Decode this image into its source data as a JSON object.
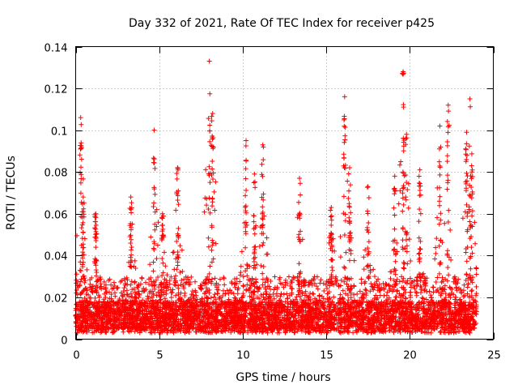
{
  "chart_data": {
    "type": "scatter",
    "title": "Day 332 of 2021, Rate Of TEC Index for receiver p425",
    "xlabel": "GPS time / hours",
    "ylabel": "ROTI / TECUs",
    "xlim": [
      0,
      25
    ],
    "ylim": [
      0,
      0.14
    ],
    "xticks": [
      0,
      5,
      10,
      15,
      20,
      25
    ],
    "xtick_labels": [
      "0",
      "5",
      "10",
      "15",
      "20",
      "25"
    ],
    "yticks": [
      0,
      0.02,
      0.04,
      0.06,
      0.08,
      0.1,
      0.12,
      0.14
    ],
    "ytick_labels": [
      "0",
      "0.02",
      "0.04",
      "0.06",
      "0.08",
      "0.1",
      "0.12",
      "0.14"
    ],
    "grid": true,
    "marker": "+",
    "color": "#ff0000",
    "data_range_x": [
      0,
      24
    ],
    "peaks": [
      {
        "x": 0.3,
        "y": 0.106
      },
      {
        "x": 0.45,
        "y": 0.068
      },
      {
        "x": 1.2,
        "y": 0.06
      },
      {
        "x": 3.3,
        "y": 0.068
      },
      {
        "x": 4.7,
        "y": 0.1
      },
      {
        "x": 5.2,
        "y": 0.06
      },
      {
        "x": 6.1,
        "y": 0.082
      },
      {
        "x": 8.0,
        "y": 0.133
      },
      {
        "x": 8.2,
        "y": 0.108
      },
      {
        "x": 10.2,
        "y": 0.095
      },
      {
        "x": 10.7,
        "y": 0.079
      },
      {
        "x": 11.2,
        "y": 0.093
      },
      {
        "x": 13.4,
        "y": 0.077
      },
      {
        "x": 15.3,
        "y": 0.063
      },
      {
        "x": 16.1,
        "y": 0.116
      },
      {
        "x": 16.4,
        "y": 0.082
      },
      {
        "x": 17.5,
        "y": 0.073
      },
      {
        "x": 19.1,
        "y": 0.078
      },
      {
        "x": 19.6,
        "y": 0.128
      },
      {
        "x": 19.8,
        "y": 0.098
      },
      {
        "x": 20.6,
        "y": 0.081
      },
      {
        "x": 21.8,
        "y": 0.102
      },
      {
        "x": 22.3,
        "y": 0.112
      },
      {
        "x": 23.4,
        "y": 0.099
      },
      {
        "x": 23.6,
        "y": 0.115
      },
      {
        "x": 23.7,
        "y": 0.083
      }
    ]
  }
}
